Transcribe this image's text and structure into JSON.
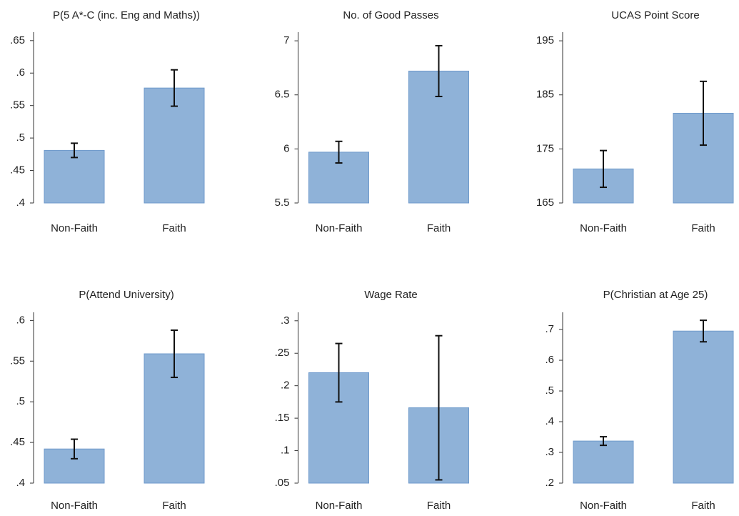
{
  "chart_data": [
    {
      "type": "bar",
      "title": "P(5 A*-C (inc. Eng and Maths))",
      "categories": [
        "Non-Faith",
        "Faith"
      ],
      "values": [
        0.481,
        0.577
      ],
      "errors": [
        0.011,
        0.028
      ],
      "color": "#8fb2d8",
      "ylim": [
        0.4,
        0.663
      ],
      "yticks": [
        {
          "value": 0.4,
          "label": ".4"
        },
        {
          "value": 0.45,
          "label": ".45"
        },
        {
          "value": 0.5,
          "label": ".5"
        },
        {
          "value": 0.55,
          "label": ".55"
        },
        {
          "value": 0.6,
          "label": ".6"
        },
        {
          "value": 0.65,
          "label": ".65"
        }
      ]
    },
    {
      "type": "bar",
      "title": "No. of Good Passes",
      "categories": [
        "Non-Faith",
        "Faith"
      ],
      "values": [
        5.97,
        6.72
      ],
      "errors": [
        0.1,
        0.235
      ],
      "color": "#8fb2d8",
      "ylim": [
        5.5,
        7.08
      ],
      "yticks": [
        5.5,
        6,
        6.5,
        7
      ]
    },
    {
      "type": "bar",
      "title": "UCAS Point Score",
      "categories": [
        "Non-Faith",
        "Faith"
      ],
      "values": [
        171.3,
        181.6
      ],
      "errors": [
        3.4,
        5.9
      ],
      "color": "#8fb2d8",
      "ylim": [
        165,
        196.6
      ],
      "yticks": [
        165,
        175,
        185,
        195
      ]
    },
    {
      "type": "bar",
      "title": "P(Attend University)",
      "categories": [
        "Non-Faith",
        "Faith"
      ],
      "values": [
        0.442,
        0.559
      ],
      "errors": [
        0.012,
        0.029
      ],
      "color": "#8fb2d8",
      "ylim": [
        0.4,
        0.61
      ],
      "yticks": [
        {
          "value": 0.4,
          "label": ".4"
        },
        {
          "value": 0.45,
          "label": ".45"
        },
        {
          "value": 0.5,
          "label": ".5"
        },
        {
          "value": 0.55,
          "label": ".55"
        },
        {
          "value": 0.6,
          "label": ".6"
        }
      ]
    },
    {
      "type": "bar",
      "title": "Wage Rate",
      "categories": [
        "Non-Faith",
        "Faith"
      ],
      "values": [
        0.22,
        0.166
      ],
      "errors": [
        0.045,
        0.111
      ],
      "color": "#8fb2d8",
      "ylim": [
        0.05,
        0.313
      ],
      "yticks": [
        {
          "value": 0.05,
          "label": ".05"
        },
        {
          "value": 0.1,
          "label": ".1"
        },
        {
          "value": 0.15,
          "label": ".15"
        },
        {
          "value": 0.2,
          "label": ".2"
        },
        {
          "value": 0.25,
          "label": ".25"
        },
        {
          "value": 0.3,
          "label": ".3"
        }
      ]
    },
    {
      "type": "bar",
      "title": "P(Christian at Age 25)",
      "categories": [
        "Non-Faith",
        "Faith"
      ],
      "values": [
        0.337,
        0.695
      ],
      "errors": [
        0.014,
        0.035
      ],
      "color": "#8fb2d8",
      "ylim": [
        0.2,
        0.756
      ],
      "yticks": [
        {
          "value": 0.2,
          "label": ".2"
        },
        {
          "value": 0.3,
          "label": ".3"
        },
        {
          "value": 0.4,
          "label": ".4"
        },
        {
          "value": 0.5,
          "label": ".5"
        },
        {
          "value": 0.6,
          "label": ".6"
        },
        {
          "value": 0.7,
          "label": ".7"
        }
      ]
    }
  ]
}
